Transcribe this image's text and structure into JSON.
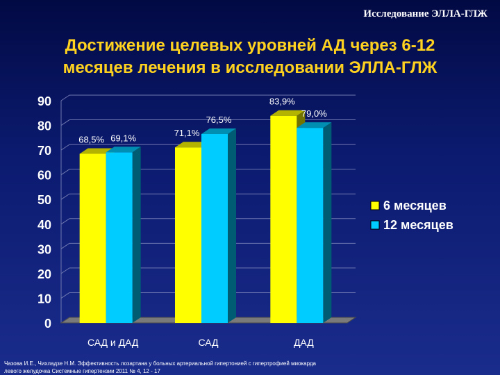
{
  "header": {
    "study_tag": "Исследование ЭЛЛА-ГЛЖ"
  },
  "slide": {
    "title_line1": "Достижение целевых уровней АД через 6-12",
    "title_line2": "месяцев лечения в исследовании ЭЛЛА-ГЛЖ"
  },
  "chart_data": {
    "type": "bar",
    "categories": [
      "САД и ДАД",
      "САД",
      "ДАД"
    ],
    "series": [
      {
        "name": "6 месяцев",
        "values": [
          68.5,
          71.1,
          83.9
        ],
        "labels": [
          "68,5%",
          "71,1%",
          "83,9%"
        ],
        "color": "#ffff00"
      },
      {
        "name": "12 месяцев",
        "values": [
          69.1,
          76.5,
          79.0
        ],
        "labels": [
          "69,1%",
          "76,5%",
          "79,0%"
        ],
        "color": "#00ccff"
      }
    ],
    "ylim": [
      0,
      90
    ],
    "yticks": [
      "0",
      "10",
      "20",
      "30",
      "40",
      "50",
      "60",
      "70",
      "80",
      "90"
    ],
    "grid": true,
    "legend": "right"
  },
  "citation": {
    "line1": "Чазова И.Е., Чихладзе Н.М. Эффективность лозартана у больных артериальной гипертонией с гипертрофией миокарда",
    "line2": "левого желудочка Системные гипертензии 2011 № 4, 12 - 17"
  }
}
